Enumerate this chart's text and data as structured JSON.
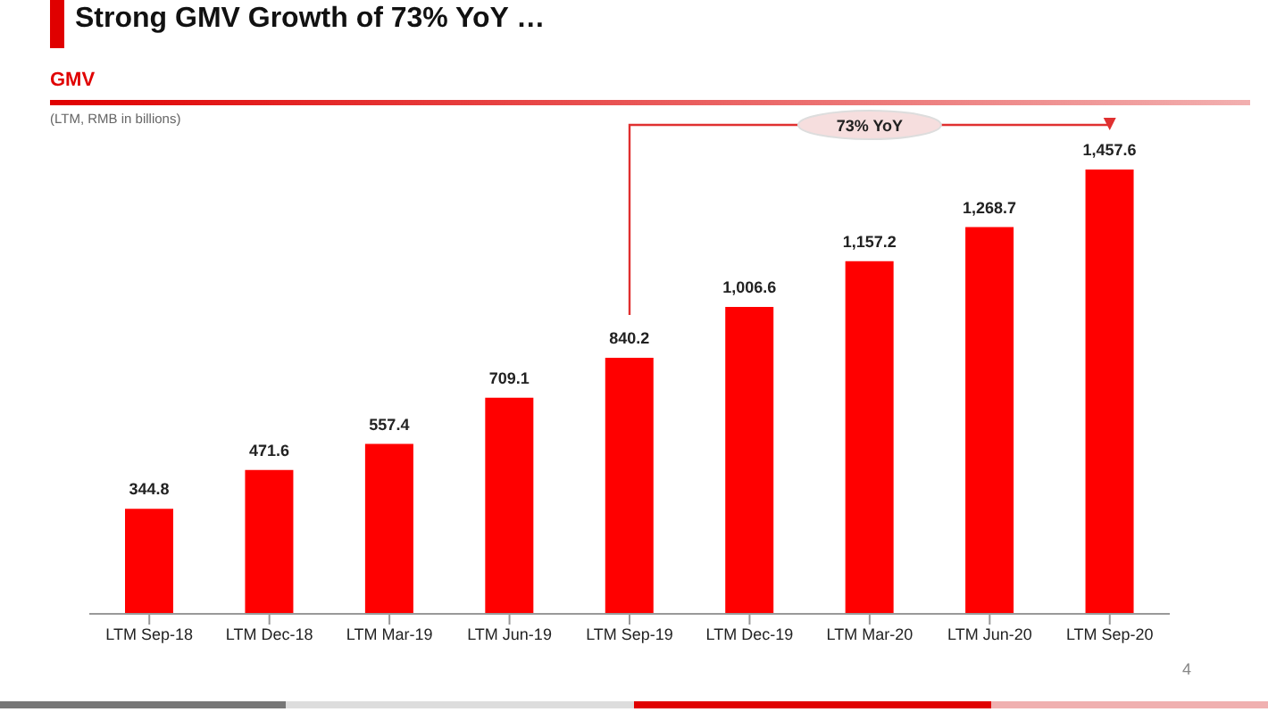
{
  "chart_data": {
    "type": "bar",
    "title": "Strong GMV Growth of 73% YoY …",
    "subtitle": "GMV",
    "ylabel": "(LTM, RMB in billions)",
    "categories": [
      "LTM Sep-18",
      "LTM Dec-18",
      "LTM Mar-19",
      "LTM Jun-19",
      "LTM Sep-19",
      "LTM Dec-19",
      "LTM Mar-20",
      "LTM Jun-20",
      "LTM Sep-20"
    ],
    "values": [
      344.8,
      471.6,
      557.4,
      709.1,
      840.2,
      1006.6,
      1157.2,
      1268.7,
      1457.6
    ],
    "value_labels": [
      "344.8",
      "471.6",
      "557.4",
      "709.1",
      "840.2",
      "1,006.6",
      "1,157.2",
      "1,268.7",
      "1,457.6"
    ],
    "color": "#ff0000",
    "annotations": [
      "73% YoY",
      "4"
    ]
  }
}
